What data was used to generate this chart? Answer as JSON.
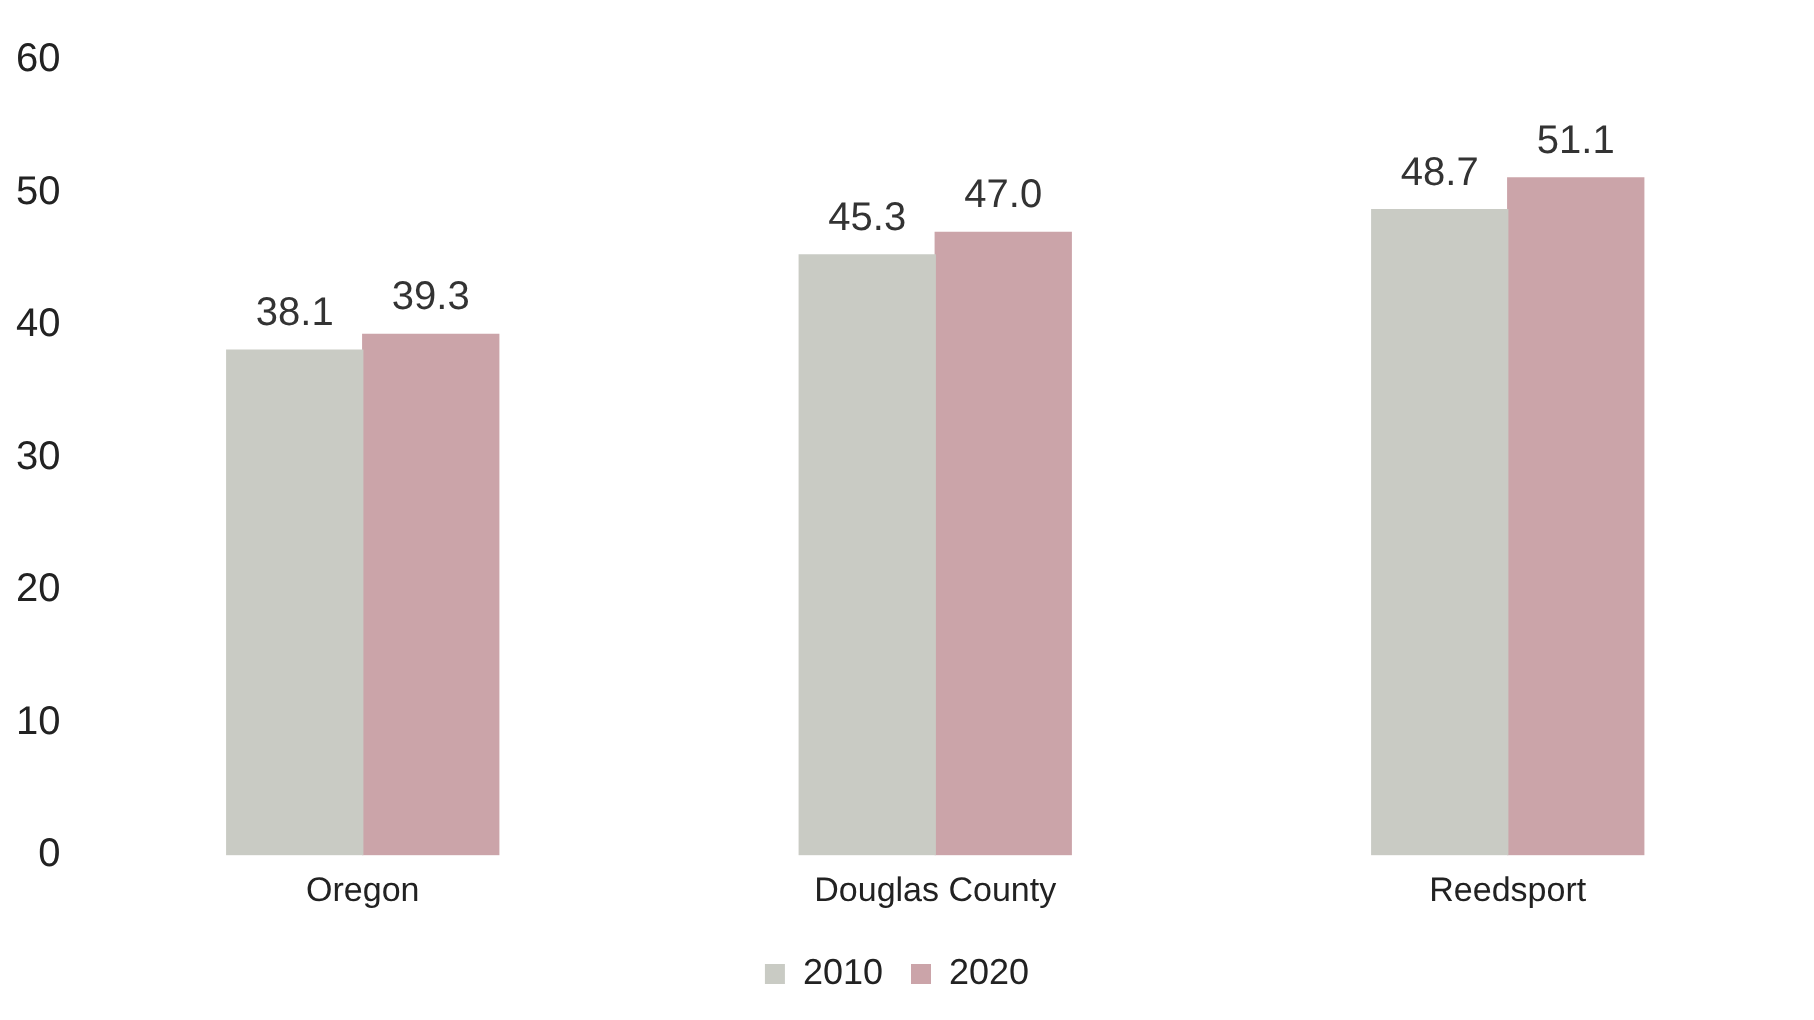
{
  "chart_data": {
    "type": "bar",
    "categories": [
      "Oregon",
      "Douglas County",
      "Reedsport"
    ],
    "series": [
      {
        "name": "2010",
        "color": "#c9cbc4",
        "values": [
          38.1,
          45.3,
          48.7
        ],
        "value_labels": [
          "38.1",
          "45.3",
          "48.7"
        ]
      },
      {
        "name": "2020",
        "color": "#cba4a9",
        "values": [
          39.3,
          47.0,
          51.1
        ],
        "value_labels": [
          "39.3",
          "47.0",
          "51.1"
        ]
      }
    ],
    "ylim": [
      0,
      60
    ],
    "yticks": [
      0,
      10,
      20,
      30,
      40,
      50,
      60
    ],
    "grid": false,
    "legend": "bottom"
  }
}
